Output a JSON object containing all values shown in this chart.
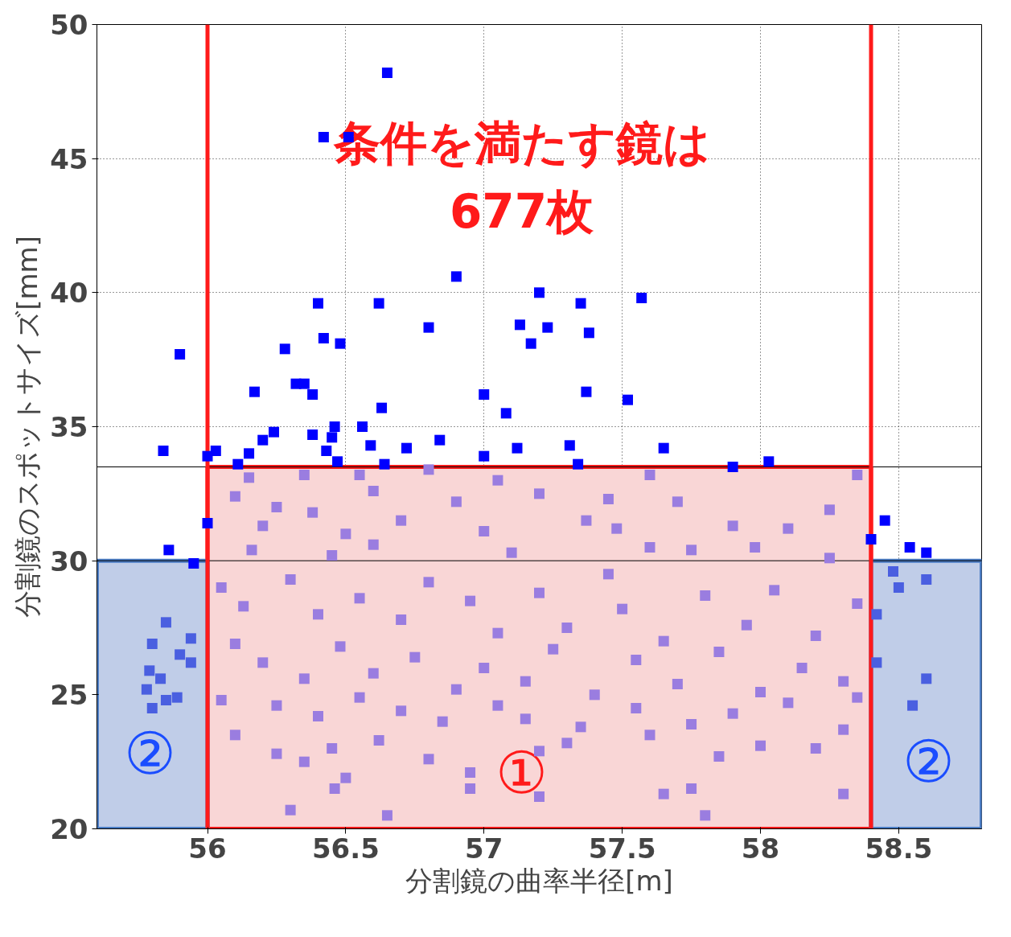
{
  "chart_data": {
    "type": "scatter",
    "xlabel": "分割鏡の曲率半径[m]",
    "ylabel": "分割鏡のスポットサイズ[mm]",
    "xlim": [
      55.6,
      58.8
    ],
    "ylim": [
      20,
      50
    ],
    "xticks": [
      56,
      56.5,
      57,
      57.5,
      58,
      58.5
    ],
    "yticks": [
      20,
      25,
      30,
      35,
      40,
      45,
      50
    ],
    "grid": true,
    "marker": "square",
    "bands": [
      {
        "axis": "x",
        "from": 56,
        "to": 58.4,
        "color": "#f9d6d6"
      },
      {
        "axis": "x",
        "from": 55.6,
        "to": 56,
        "color": "#c0cde8"
      },
      {
        "axis": "x",
        "from": 58.4,
        "to": 58.8,
        "color": "#c0cde8"
      }
    ],
    "ref_lines": [
      {
        "axis": "y",
        "value": 33.5,
        "color": "#000000"
      },
      {
        "axis": "y",
        "value": 30,
        "color": "#000000"
      },
      {
        "axis": "x",
        "value": 56,
        "color": "#ff1a1a"
      },
      {
        "axis": "x",
        "value": 58.4,
        "color": "#ff1a1a"
      }
    ],
    "annotations": [
      "条件を満たす鏡は\n677枚",
      "①",
      "②",
      "②"
    ],
    "series": [
      {
        "color": "#0000ff",
        "x": [
          55.84,
          55.9,
          56.0,
          56.03,
          56.11,
          56.15,
          56.17,
          56.2,
          56.24,
          56.28,
          56.32,
          56.35,
          56.38,
          56.38,
          56.4,
          56.42,
          56.43,
          56.45,
          56.46,
          56.48,
          56.47,
          56.42,
          56.51,
          56.56,
          56.59,
          56.62,
          56.63,
          56.64,
          56.65,
          56.72,
          56.8,
          56.84,
          56.9,
          57.0,
          57.0,
          57.08,
          57.12,
          57.13,
          57.17,
          57.2,
          57.23,
          57.31,
          57.34,
          57.35,
          57.37,
          57.38,
          57.52,
          57.57,
          57.65,
          57.9,
          58.03,
          55.86,
          55.95,
          56.0,
          58.45,
          58.54,
          58.6,
          58.4
        ],
        "values": [
          34.1,
          37.7,
          33.9,
          34.1,
          33.6,
          34.0,
          36.3,
          34.5,
          34.8,
          37.9,
          36.6,
          36.6,
          36.2,
          34.7,
          39.6,
          38.3,
          34.1,
          34.6,
          35.0,
          38.1,
          33.7,
          45.8,
          45.8,
          35.0,
          34.3,
          39.6,
          35.7,
          33.6,
          48.2,
          34.2,
          38.7,
          34.5,
          40.6,
          36.2,
          33.9,
          35.5,
          34.2,
          38.8,
          38.1,
          40.0,
          38.7,
          34.3,
          33.6,
          39.6,
          36.3,
          38.5,
          36.0,
          39.8,
          34.2,
          33.5,
          33.7,
          30.4,
          29.9,
          31.4,
          31.5,
          30.5,
          30.3,
          30.8
        ]
      },
      {
        "color": "#9a7de0",
        "x": [
          56.15,
          56.35,
          56.55,
          56.8,
          57.05,
          57.6,
          58.35,
          56.1,
          56.25,
          56.38,
          56.6,
          56.9,
          57.2,
          57.45,
          57.7,
          58.25,
          56.2,
          56.5,
          56.7,
          57.0,
          57.37,
          57.48,
          57.9,
          58.1,
          56.16,
          56.45,
          56.6,
          57.1,
          57.6,
          57.75,
          57.98,
          58.25,
          56.05,
          56.13,
          56.3,
          56.4,
          56.55,
          56.7,
          56.8,
          56.95,
          57.05,
          57.2,
          57.3,
          57.45,
          57.5,
          57.65,
          57.8,
          57.95,
          58.05,
          58.2,
          58.35,
          56.1,
          56.2,
          56.35,
          56.48,
          56.6,
          56.75,
          56.9,
          57.0,
          57.15,
          57.25,
          57.4,
          57.55,
          57.7,
          57.85,
          58.0,
          58.15,
          58.3,
          56.05,
          56.25,
          56.4,
          56.55,
          56.7,
          56.85,
          57.05,
          57.15,
          57.35,
          57.55,
          57.75,
          57.9,
          58.1,
          58.3,
          56.1,
          56.25,
          56.35,
          56.45,
          56.5,
          56.62,
          56.8,
          56.95,
          57.2,
          57.3,
          57.6,
          57.85,
          58.0,
          58.2,
          56.3,
          56.46,
          56.65,
          56.95,
          57.2,
          57.65,
          57.75,
          57.8,
          58.3,
          58.35
        ],
        "values": [
          33.1,
          33.2,
          33.2,
          33.4,
          33.0,
          33.2,
          33.2,
          32.4,
          32.0,
          31.8,
          32.6,
          32.2,
          32.5,
          32.3,
          32.2,
          31.9,
          31.3,
          31.0,
          31.5,
          31.1,
          31.5,
          31.2,
          31.3,
          31.2,
          30.4,
          30.2,
          30.6,
          30.3,
          30.5,
          30.4,
          30.5,
          30.1,
          29.0,
          28.3,
          29.3,
          28.0,
          28.6,
          27.8,
          29.2,
          28.5,
          27.3,
          28.8,
          27.5,
          29.5,
          28.2,
          27.0,
          28.7,
          27.6,
          28.9,
          27.2,
          28.4,
          26.9,
          26.2,
          25.6,
          26.8,
          25.8,
          26.4,
          25.2,
          26.0,
          25.5,
          26.7,
          25.0,
          26.3,
          25.4,
          26.6,
          25.1,
          26.0,
          25.5,
          24.8,
          24.6,
          24.2,
          24.9,
          24.4,
          24.0,
          24.6,
          24.1,
          23.8,
          24.5,
          23.9,
          24.3,
          24.7,
          23.7,
          23.5,
          22.8,
          22.5,
          23.0,
          21.9,
          23.3,
          22.6,
          22.1,
          22.9,
          23.2,
          23.5,
          22.7,
          23.1,
          23.0,
          20.7,
          21.5,
          20.5,
          21.5,
          21.2,
          21.3,
          21.5,
          20.5,
          21.3,
          24.9
        ]
      },
      {
        "color": "#4a5fe0",
        "x": [
          55.8,
          55.85,
          55.79,
          55.83,
          55.8,
          55.85,
          55.89,
          55.94,
          55.94,
          55.9,
          55.78,
          58.48,
          58.5,
          58.6,
          58.6,
          58.55,
          58.42,
          58.42
        ],
        "values": [
          26.9,
          27.7,
          25.9,
          25.6,
          24.5,
          24.8,
          24.9,
          27.1,
          26.2,
          26.5,
          25.2,
          29.6,
          29.0,
          29.3,
          25.6,
          24.6,
          28.0,
          26.2
        ]
      }
    ]
  }
}
